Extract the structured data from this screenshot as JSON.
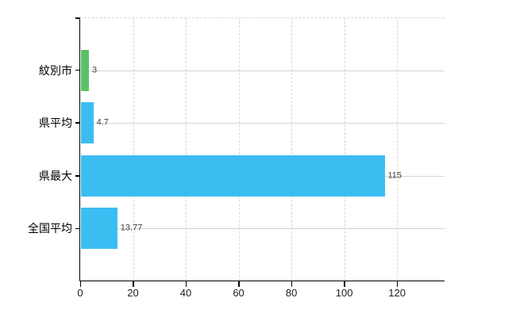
{
  "chart_data": {
    "type": "bar",
    "orientation": "horizontal",
    "title": "",
    "xlabel": "",
    "ylabel": "",
    "categories": [
      "紋別市",
      "県平均",
      "県最大",
      "全国平均"
    ],
    "values": [
      3,
      4.7,
      115,
      13.77
    ],
    "value_labels": [
      "3",
      "4.7",
      "115",
      "13.77"
    ],
    "bar_colors": [
      "#5cc266",
      "#3bbdf2",
      "#3bbdf2",
      "#3bbdf2"
    ],
    "x_ticks": [
      0,
      20,
      40,
      60,
      80,
      100,
      120
    ],
    "xlim": [
      0,
      138
    ],
    "grid": {
      "vertical_gridlines": "dashed-at-ticks",
      "horizontal_category_lines": "solid",
      "top_border": "dashed"
    },
    "legend_position": "none"
  },
  "colors": {
    "background": "#ffffff",
    "axis": "#000000",
    "grid_vertical": "#d9d9d9",
    "category_line": "#d4d4d4",
    "bar_blue": "#3bbdf2",
    "bar_green": "#5cc266",
    "category_text": "#000000",
    "value_text": "#404040",
    "tick_text": "#222222"
  }
}
